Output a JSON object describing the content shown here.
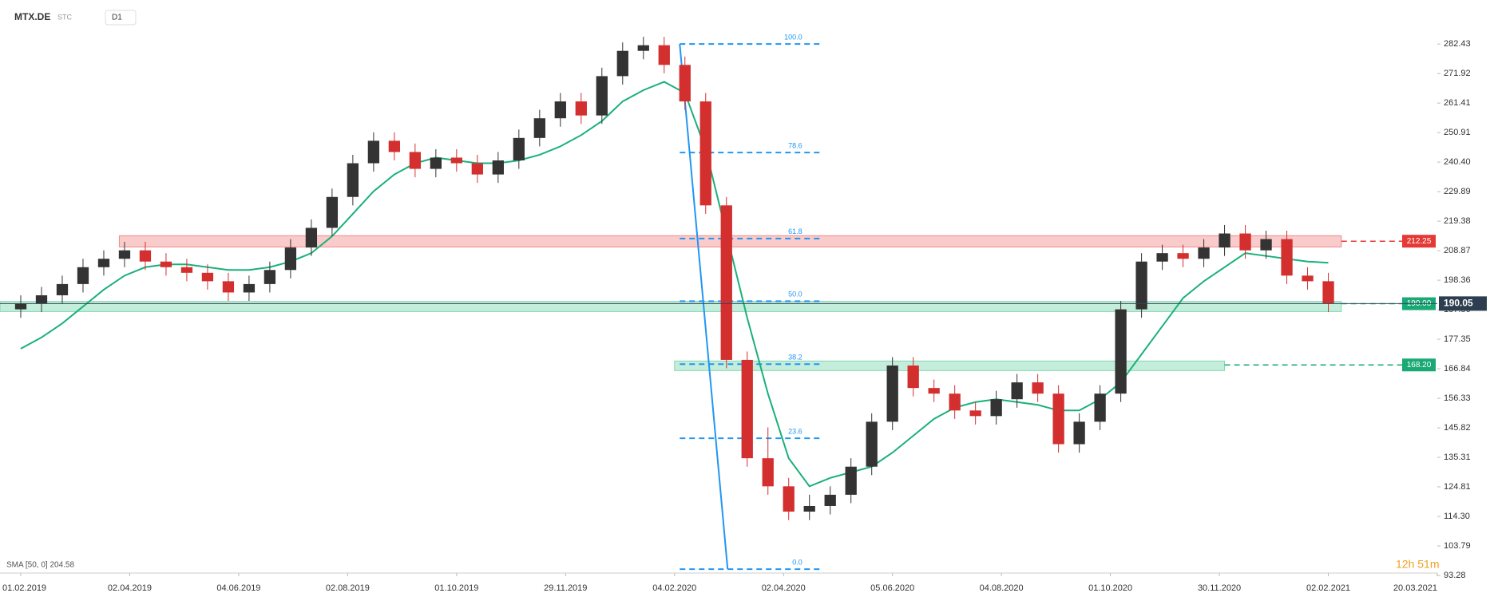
{
  "chart_data": {
    "type": "candlestick",
    "symbol": "MTX.DE",
    "group": "STC",
    "interval": "D1",
    "indicator_label": "SMA [50, 0] 204.58",
    "countdown": "12h 51m",
    "xlim": [
      -8,
      546
    ],
    "ylim": [
      93.28,
      298.1
    ],
    "xticks": [
      {
        "value": 0,
        "label": "01.02.2019"
      },
      {
        "value": 42,
        "label": "02.04.2019"
      },
      {
        "value": 84,
        "label": "04.06.2019"
      },
      {
        "value": 126,
        "label": "02.08.2019"
      },
      {
        "value": 168,
        "label": "01.10.2019"
      },
      {
        "value": 210,
        "label": "29.11.2019"
      },
      {
        "value": 252,
        "label": "04.02.2020"
      },
      {
        "value": 294,
        "label": "02.04.2020"
      },
      {
        "value": 336,
        "label": "05.06.2020"
      },
      {
        "value": 378,
        "label": "04.08.2020"
      },
      {
        "value": 420,
        "label": "01.10.2020"
      },
      {
        "value": 462,
        "label": "30.11.2020"
      },
      {
        "value": 504,
        "label": "02.02.2021"
      },
      {
        "value": 546,
        "label": "20.03.2021"
      }
    ],
    "yticks": [
      282.43,
      271.92,
      261.41,
      250.91,
      {
        "value": 240.4,
        "label": "240.40"
      },
      229.89,
      219.38,
      208.87,
      198.36,
      187.86,
      177.35,
      166.84,
      156.33,
      145.82,
      135.31,
      124.81,
      {
        "value": 114.3,
        "label": "114.30"
      },
      103.79,
      93.28
    ],
    "x": [
      0,
      8,
      16,
      24,
      32,
      40,
      48,
      56,
      64,
      72,
      80,
      88,
      96,
      104,
      112,
      120,
      128,
      136,
      144,
      152,
      160,
      168,
      176,
      184,
      192,
      200,
      208,
      216,
      224,
      232,
      240,
      248,
      256,
      264,
      272,
      280,
      288,
      296,
      304,
      312,
      320,
      328,
      336,
      344,
      352,
      360,
      368,
      376,
      384,
      392,
      400,
      408,
      416,
      424,
      432,
      440,
      448,
      456,
      464,
      472,
      480,
      488,
      496,
      504
    ],
    "open": [
      188,
      190,
      193,
      197,
      203,
      206,
      209,
      205,
      203,
      201,
      198,
      194,
      197,
      202,
      210,
      217,
      228,
      240,
      248,
      244,
      238,
      242,
      240,
      236,
      241,
      249,
      256,
      262,
      257,
      271,
      280,
      282,
      275,
      262,
      225,
      170,
      135,
      125,
      116,
      118,
      122,
      132,
      148,
      168,
      160,
      158,
      152,
      150,
      156,
      162,
      158,
      140,
      148,
      158,
      188,
      205,
      208,
      206,
      210,
      215,
      209,
      213,
      200,
      198
    ],
    "close": [
      190,
      193,
      197,
      203,
      206,
      209,
      205,
      203,
      201,
      198,
      194,
      197,
      202,
      210,
      217,
      228,
      240,
      248,
      244,
      238,
      242,
      240,
      236,
      241,
      249,
      256,
      262,
      257,
      271,
      280,
      282,
      275,
      262,
      225,
      170,
      135,
      125,
      116,
      118,
      122,
      132,
      148,
      168,
      160,
      158,
      152,
      150,
      156,
      162,
      158,
      140,
      148,
      158,
      188,
      205,
      208,
      206,
      210,
      215,
      209,
      213,
      200,
      198,
      190.05
    ],
    "high": [
      193,
      196,
      200,
      206,
      209,
      212,
      212,
      208,
      206,
      204,
      201,
      200,
      205,
      213,
      220,
      231,
      243,
      251,
      251,
      247,
      245,
      245,
      243,
      244,
      252,
      259,
      265,
      265,
      274,
      283,
      285,
      285,
      278,
      265,
      228,
      173,
      146,
      128,
      122,
      125,
      135,
      151,
      171,
      171,
      163,
      161,
      155,
      159,
      165,
      165,
      161,
      151,
      161,
      191,
      208,
      211,
      211,
      213,
      218,
      218,
      216,
      216,
      203,
      201
    ],
    "low": [
      185,
      187,
      190,
      194,
      200,
      203,
      202,
      200,
      198,
      195,
      191,
      191,
      194,
      199,
      207,
      214,
      225,
      237,
      241,
      235,
      235,
      237,
      233,
      233,
      238,
      246,
      253,
      254,
      254,
      268,
      277,
      272,
      259,
      222,
      167,
      132,
      122,
      113,
      113,
      115,
      119,
      129,
      145,
      157,
      155,
      149,
      147,
      147,
      153,
      155,
      137,
      137,
      145,
      155,
      185,
      202,
      203,
      203,
      207,
      206,
      206,
      197,
      195,
      187
    ],
    "up_color": "#333333",
    "down_color": "#d32f2f",
    "sma": {
      "name": "SMA",
      "color": "#1ab07a",
      "values": [
        174,
        178,
        183,
        189,
        195,
        200,
        203,
        204,
        204,
        203,
        202,
        202,
        203,
        205,
        208,
        214,
        222,
        230,
        236,
        240,
        242,
        241,
        240,
        240,
        241,
        243,
        246,
        250,
        255,
        262,
        266,
        269,
        265,
        245,
        215,
        185,
        158,
        135,
        125,
        128,
        130,
        132,
        137,
        143,
        149,
        153,
        155,
        156,
        155,
        154,
        152,
        152,
        156,
        162,
        172,
        182,
        192,
        198,
        203,
        208,
        207,
        206,
        205,
        204.58
      ]
    },
    "zones": [
      {
        "from": 38,
        "to": 509,
        "low": 210.2,
        "high": 214.2,
        "color": "#f28b8b"
      },
      {
        "from": -8,
        "to": 509,
        "low": 187.2,
        "high": 190.8,
        "color": "#7fd8b0"
      },
      {
        "from": 252,
        "to": 464,
        "low": 166.2,
        "high": 169.6,
        "color": "#7fd8b0"
      }
    ],
    "levels": [
      {
        "value": 212.25,
        "label": "212.25",
        "from": 509,
        "color": "#e53935"
      },
      {
        "value": 190,
        "label": "190.00",
        "from": 509,
        "color": "#19a974"
      },
      {
        "value": 168.2,
        "label": "168.20",
        "from": 464,
        "color": "#19a974"
      }
    ],
    "last_price": {
      "value": 190.05,
      "label": "190.05"
    },
    "fib": {
      "from": 254,
      "to": 308,
      "start": 282.43,
      "end": 95.5,
      "color": "#2196f3",
      "levels": [
        {
          "label": "100.0",
          "price": 282.43
        },
        {
          "label": "78.6",
          "price": 243.8
        },
        {
          "label": "61.8",
          "price": 213.2
        },
        {
          "label": "50.0",
          "price": 190.9
        },
        {
          "label": "38.2",
          "price": 168.5
        },
        {
          "label": "23.6",
          "price": 142.1
        },
        {
          "label": "0.0",
          "price": 95.5
        }
      ]
    }
  }
}
